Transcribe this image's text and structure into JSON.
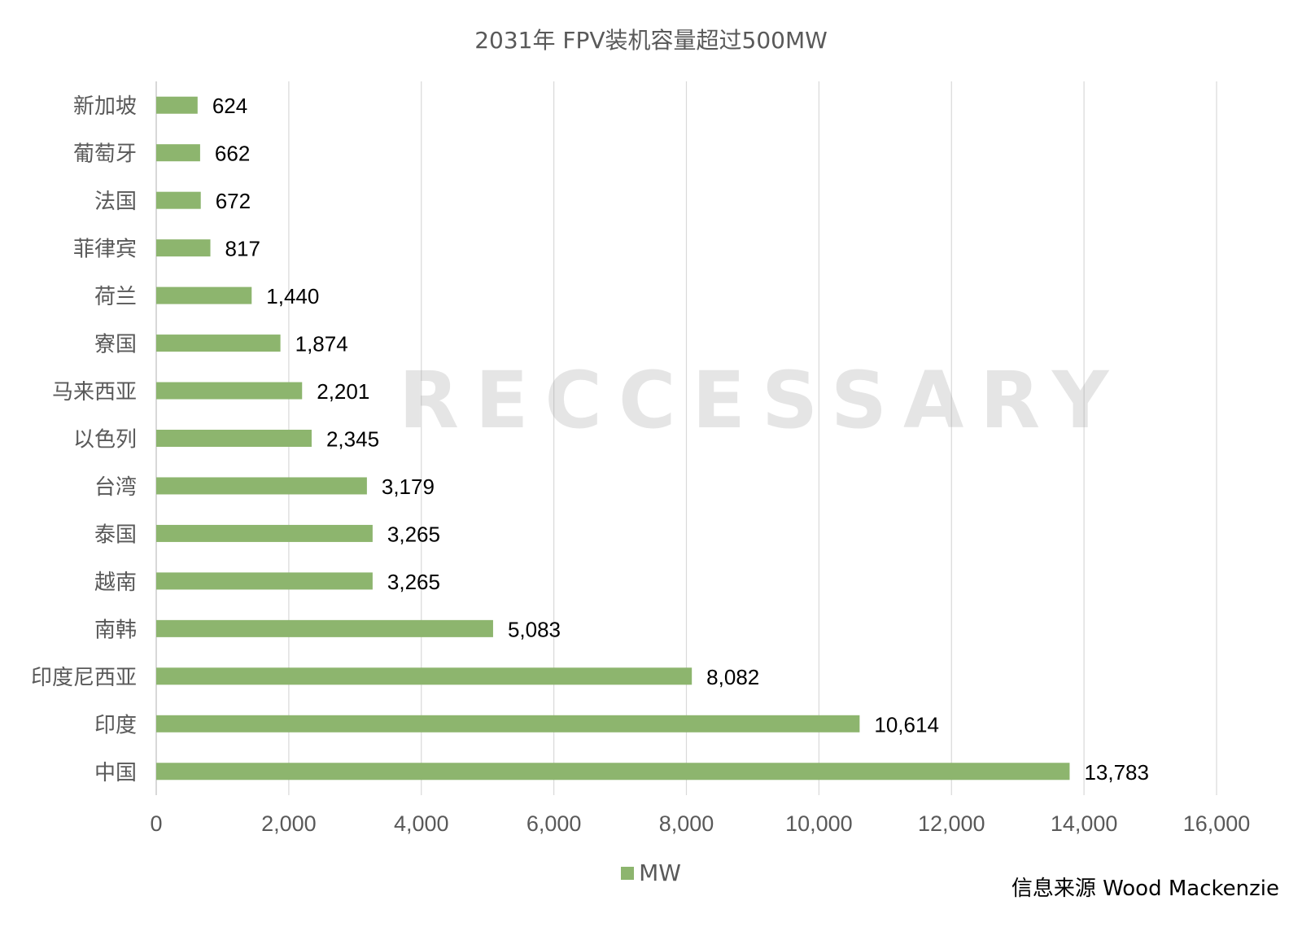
{
  "colors": {
    "bar": "#8DB56E",
    "grid": "#D9D9D9",
    "text": "#595959",
    "label": "#000000"
  },
  "watermark": "RECCESSARY",
  "source": "信息来源 Wood Mackenzie",
  "chart_data": {
    "type": "bar",
    "orientation": "horizontal",
    "title": "2031年 FPV装机容量超过500MW",
    "categories": [
      "新加坡",
      "葡萄牙",
      "法国",
      "菲律宾",
      "荷兰",
      "寮国",
      "马来西亚",
      "以色列",
      "台湾",
      "泰国",
      "越南",
      "南韩",
      "印度尼西亚",
      "印度",
      "中国"
    ],
    "series": [
      {
        "name": "MW",
        "values": [
          624,
          662,
          672,
          817,
          1440,
          1874,
          2201,
          2345,
          3179,
          3265,
          3265,
          5083,
          8082,
          10614,
          13783
        ]
      }
    ],
    "data_labels": [
      "624",
      "662",
      "672",
      "817",
      "1,440",
      "1,874",
      "2,201",
      "2,345",
      "3,179",
      "3,265",
      "3,265",
      "5,083",
      "8,082",
      "10,614",
      "13,783"
    ],
    "xlim": [
      0,
      16000
    ],
    "xticks": [
      "0",
      "2,000",
      "4,000",
      "6,000",
      "8,000",
      "10,000",
      "12,000",
      "14,000",
      "16,000"
    ],
    "xlabel": "",
    "ylabel": "",
    "grid": true,
    "legend": "bottom"
  }
}
